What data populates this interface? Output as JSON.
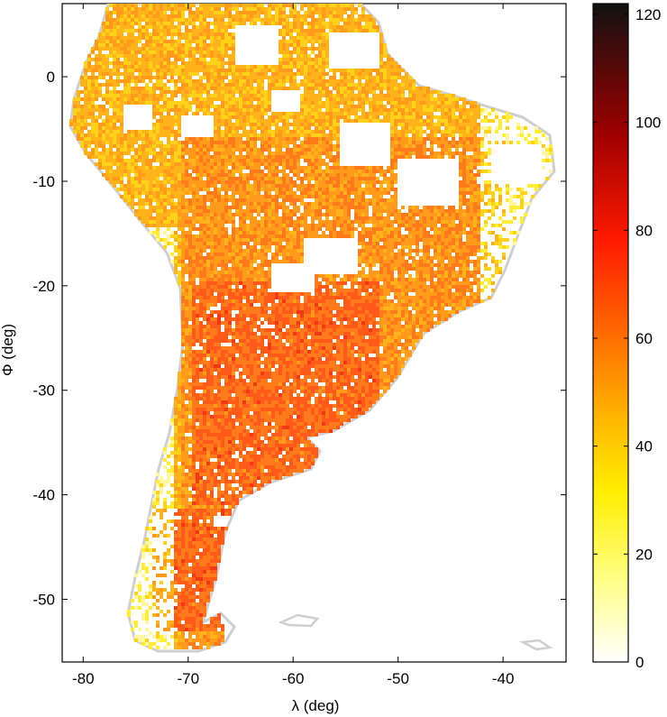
{
  "map": {
    "x_axis_label": "λ (deg)",
    "y_axis_label": "Φ (deg)",
    "x_range": [
      -82,
      -34
    ],
    "y_range": [
      -56,
      7
    ],
    "x_ticks": [
      -80,
      -70,
      -60,
      -50,
      -40
    ],
    "y_ticks": [
      0,
      -10,
      -20,
      -30,
      -40,
      -50
    ],
    "region": "South America"
  },
  "colorbar": {
    "range": [
      0,
      122
    ],
    "ticks": [
      0,
      20,
      40,
      60,
      80,
      100,
      120
    ],
    "colormap": "hot (reversed)",
    "colors": [
      "#ffffff",
      "#ffff8a",
      "#ffe600",
      "#ff8a00",
      "#ff2000",
      "#b80000",
      "#4a0000",
      "#111111"
    ]
  },
  "styles": {
    "coastline": "#c8c8c8",
    "frame": "#000000",
    "low_density": "#fff200",
    "high_density": "#ff3c10"
  }
}
